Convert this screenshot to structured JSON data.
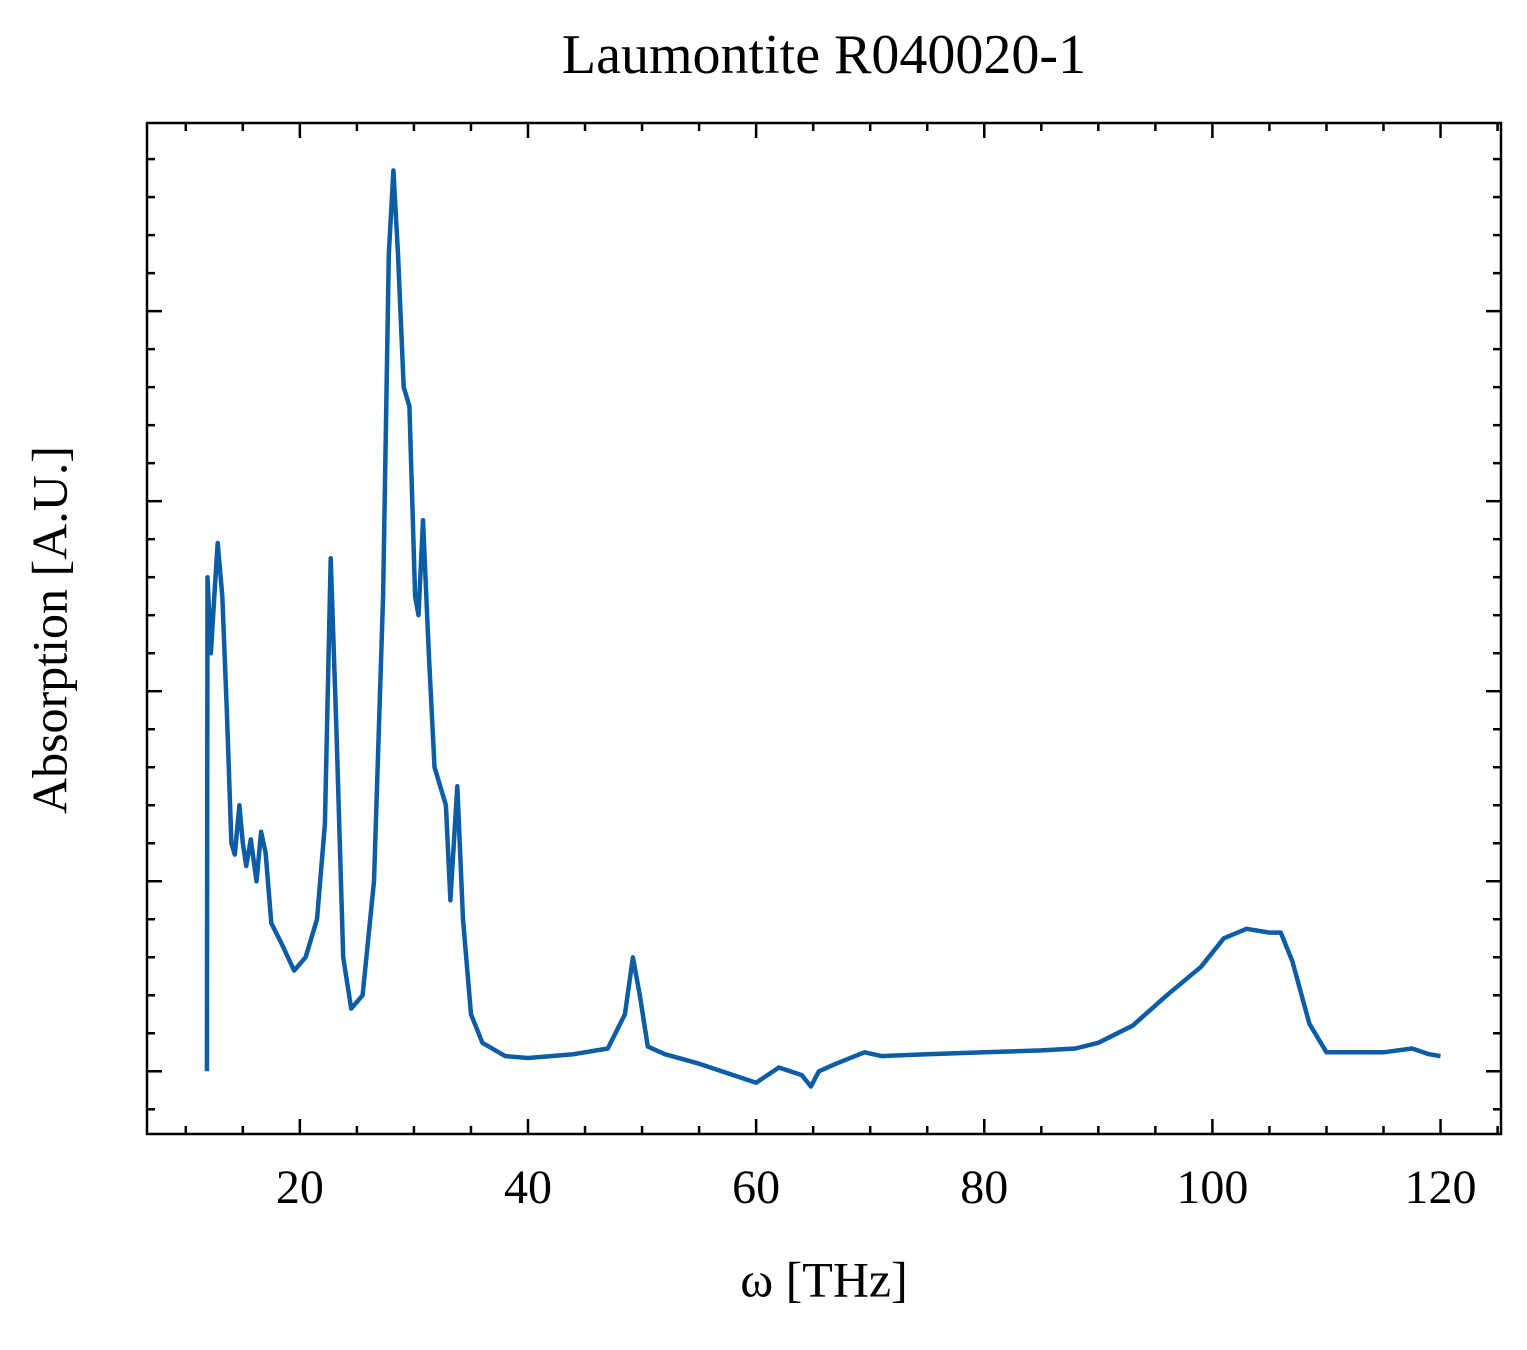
{
  "chart_data": {
    "type": "line",
    "title": "Laumontite R040020-1",
    "xlabel": "ω [THz]",
    "ylabel": "Absorption [A.U.]",
    "xlim": [
      6.6,
      125.3
    ],
    "ylim": [
      -0.33,
      4.99
    ],
    "xticks": [
      20,
      40,
      60,
      80,
      100,
      120
    ],
    "xminorticks": [
      10,
      15,
      25,
      30,
      35,
      45,
      50,
      55,
      65,
      70,
      75,
      85,
      90,
      95,
      105,
      110,
      115,
      125
    ],
    "yticks": [
      0,
      1,
      2,
      3,
      4
    ],
    "yminorticks": [
      -0.2,
      0.2,
      0.4,
      0.6,
      0.8,
      1.2,
      1.4,
      1.6,
      1.8,
      2.2,
      2.4,
      2.6,
      2.8,
      3.2,
      3.4,
      3.6,
      3.8,
      4.2,
      4.4,
      4.6,
      4.8
    ],
    "series": [
      {
        "color": "#0c5da5",
        "x": [
          11.85,
          11.9,
          12.2,
          12.5,
          12.8,
          13.2,
          13.6,
          14.0,
          14.3,
          14.7,
          15.0,
          15.3,
          15.7,
          16.2,
          16.6,
          17.0,
          17.5,
          18.5,
          19.5,
          20.5,
          21.5,
          22.2,
          22.7,
          23.2,
          23.8,
          24.5,
          25.5,
          26.5,
          27.3,
          27.8,
          28.2,
          28.6,
          29.1,
          29.6,
          30.1,
          30.4,
          30.8,
          31.3,
          31.8,
          32.3,
          32.8,
          33.2,
          33.8,
          34.3,
          35.0,
          36.0,
          38,
          40,
          44,
          47,
          48.5,
          49.2,
          49.8,
          50.5,
          52,
          55,
          58,
          60,
          62,
          64,
          64.8,
          65.5,
          67,
          69.5,
          71,
          75,
          80,
          85,
          88,
          90,
          93,
          96,
          99,
          101,
          103,
          105,
          106,
          107,
          108.5,
          110,
          112,
          115,
          117.5,
          119,
          120
        ],
        "values": [
          0,
          2.6,
          2.2,
          2.5,
          2.78,
          2.5,
          1.9,
          1.2,
          1.14,
          1.4,
          1.2,
          1.08,
          1.22,
          1.0,
          1.26,
          1.15,
          0.78,
          0.66,
          0.53,
          0.6,
          0.8,
          1.3,
          2.7,
          1.8,
          0.6,
          0.33,
          0.4,
          1.0,
          2.5,
          4.3,
          4.74,
          4.3,
          3.6,
          3.5,
          2.5,
          2.4,
          2.9,
          2.2,
          1.6,
          1.5,
          1.4,
          0.9,
          1.5,
          0.8,
          0.3,
          0.15,
          0.08,
          0.07,
          0.09,
          0.12,
          0.3,
          0.6,
          0.4,
          0.13,
          0.09,
          0.04,
          -0.02,
          -0.06,
          0.02,
          -0.02,
          -0.08,
          0,
          0.04,
          0.1,
          0.08,
          0.09,
          0.1,
          0.11,
          0.12,
          0.15,
          0.24,
          0.4,
          0.55,
          0.7,
          0.75,
          0.73,
          0.73,
          0.58,
          0.25,
          0.1,
          0.1,
          0.1,
          0.12,
          0.09,
          0.08
        ]
      }
    ]
  }
}
